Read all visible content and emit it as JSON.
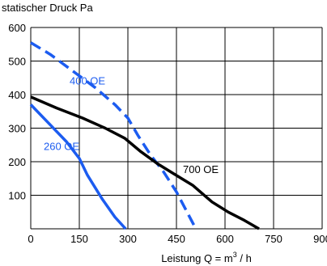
{
  "chart_data": {
    "type": "line",
    "title": "",
    "ylabel": "statischer Druck Pa",
    "xlabel_prefix": "Leistung Q = m",
    "xlabel_sup": "3",
    "xlabel_suffix": " / h",
    "xlim": [
      0,
      900
    ],
    "ylim": [
      0,
      600
    ],
    "xticks": [
      0,
      150,
      300,
      450,
      600,
      750,
      900
    ],
    "yticks": [
      100,
      200,
      300,
      400,
      500,
      600
    ],
    "xtick_labels": [
      "0",
      "150",
      "300",
      "450",
      "600",
      "750",
      "900"
    ],
    "ytick_labels": [
      "100",
      "200",
      "300",
      "400",
      "500",
      "600"
    ],
    "grid": true,
    "series": [
      {
        "name": "260 OE",
        "color": "#1c5cf0",
        "dash": "solid",
        "x": [
          0,
          60,
          110,
          150,
          175,
          220,
          260,
          293
        ],
        "y": [
          370,
          310,
          260,
          210,
          160,
          90,
          35,
          0
        ],
        "label_at": [
          40,
          247
        ]
      },
      {
        "name": "400 OE",
        "color": "#1c5cf0",
        "dash": "dashed",
        "x": [
          0,
          60,
          130,
          200,
          260,
          300,
          330,
          370,
          410,
          450,
          480,
          510
        ],
        "y": [
          555,
          520,
          470,
          420,
          370,
          330,
          280,
          220,
          170,
          110,
          55,
          0
        ],
        "label_at": [
          120,
          442
        ]
      },
      {
        "name": "700 OE",
        "color": "#000000",
        "dash": "solid",
        "x": [
          0,
          80,
          160,
          230,
          290,
          340,
          390,
          440,
          500,
          560,
          610,
          660,
          705
        ],
        "y": [
          393,
          360,
          330,
          300,
          270,
          230,
          195,
          165,
          130,
          80,
          50,
          25,
          0
        ],
        "label_at": [
          470,
          178
        ]
      }
    ]
  }
}
